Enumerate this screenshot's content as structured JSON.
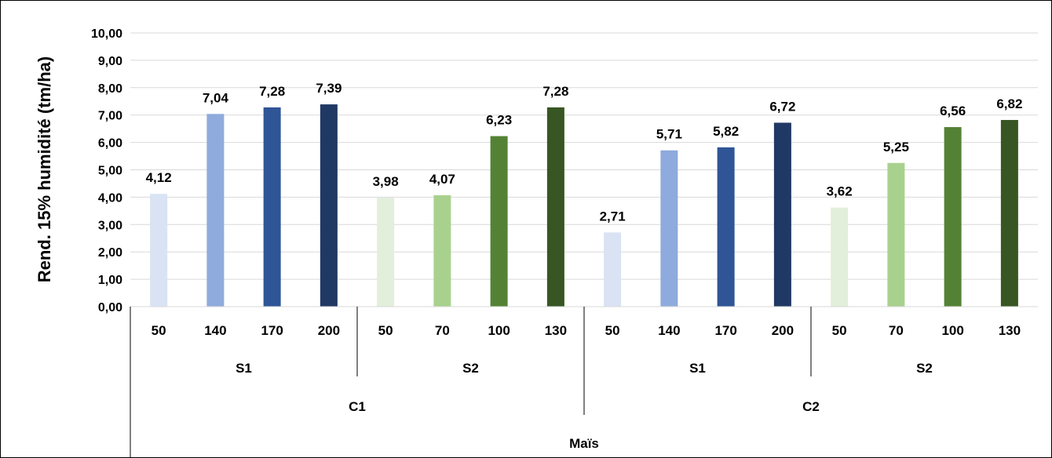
{
  "chart_data": {
    "type": "bar",
    "ylabel": "Rend. 15% humidité (tm/ha)",
    "xlabel": "",
    "title": "",
    "ylim": [
      0,
      10
    ],
    "ytick_step": 1,
    "ytick_labels": [
      "0,00",
      "1,00",
      "2,00",
      "3,00",
      "4,00",
      "5,00",
      "6,00",
      "7,00",
      "8,00",
      "9,00",
      "10,00"
    ],
    "grid": true,
    "categories": [
      "50",
      "140",
      "170",
      "200",
      "50",
      "70",
      "100",
      "130",
      "50",
      "140",
      "170",
      "200",
      "50",
      "70",
      "100",
      "130"
    ],
    "values": [
      4.12,
      7.04,
      7.28,
      7.39,
      3.98,
      4.07,
      6.23,
      7.28,
      2.71,
      5.71,
      5.82,
      6.72,
      3.62,
      5.25,
      6.56,
      6.82
    ],
    "value_labels": [
      "4,12",
      "7,04",
      "7,28",
      "7,39",
      "3,98",
      "4,07",
      "6,23",
      "7,28",
      "2,71",
      "5,71",
      "5,82",
      "6,72",
      "3,62",
      "5,25",
      "6,56",
      "6,82"
    ],
    "bar_colors": [
      "#d9e3f3",
      "#8faadc",
      "#2f5597",
      "#203864",
      "#e2efda",
      "#a9d18e",
      "#548235",
      "#375623",
      "#d9e3f3",
      "#8faadc",
      "#2f5597",
      "#203864",
      "#e2efda",
      "#a9d18e",
      "#548235",
      "#375623"
    ],
    "groups_level2": [
      {
        "label": "S1",
        "count": 4
      },
      {
        "label": "S2",
        "count": 4
      },
      {
        "label": "S1",
        "count": 4
      },
      {
        "label": "S2",
        "count": 4
      }
    ],
    "groups_level3": [
      {
        "label": "C1",
        "count": 8
      },
      {
        "label": "C2",
        "count": 8
      }
    ],
    "groups_level4": [
      {
        "label": "Maïs",
        "count": 16
      }
    ]
  }
}
